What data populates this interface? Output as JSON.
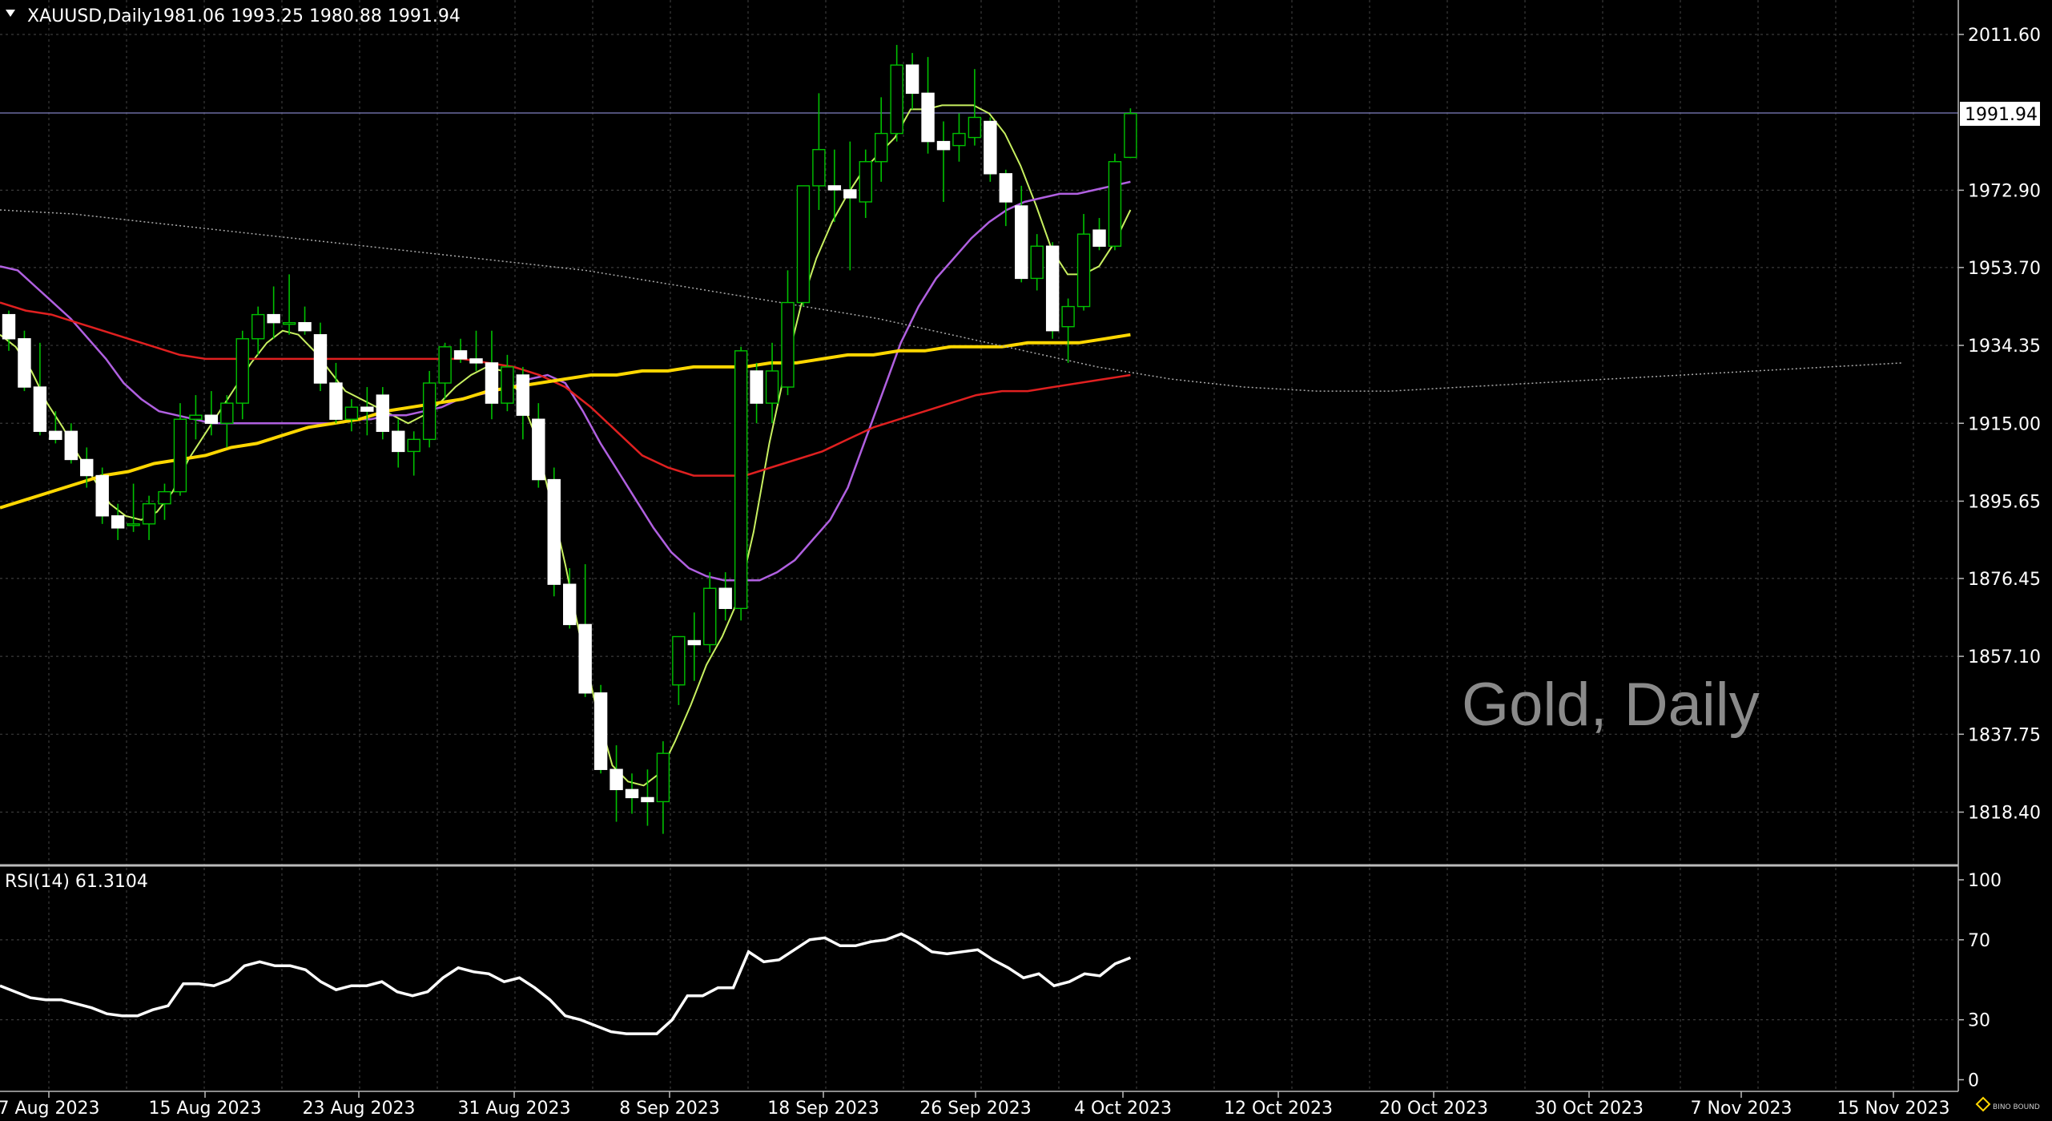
{
  "header": {
    "symbol": "XAUUSD,Daily",
    "ohlc": "1981.06 1993.25 1980.88 1991.94"
  },
  "watermark": "Gold, Daily",
  "current_price_label": "1991.94",
  "rsi_label": "RSI(14) 61.3104",
  "colors": {
    "background": "#000000",
    "grid": "#3a3a3a",
    "up_candle": "#000000",
    "down_candle": "#ffffff",
    "wick": "#00c000",
    "ma_fast": "#c8f060",
    "ma_mid": "#b060e0",
    "ma_red": "#e02020",
    "ma_gold": "#ffd700",
    "ma_dotted": "#aaaaaa",
    "rsi_line": "#ffffff",
    "bid_line": "#6a6aa0"
  },
  "chart_data": {
    "type": "candlestick",
    "symbol": "XAUUSD",
    "timeframe": "Daily",
    "price_axis_ticks": [
      2011.6,
      1991.94,
      1972.9,
      1953.7,
      1934.35,
      1915.0,
      1895.65,
      1876.45,
      1857.1,
      1837.75,
      1818.4
    ],
    "price_axis_labels": [
      "2011.60",
      "1972.90",
      "1953.70",
      "1934.35",
      "1915.00",
      "1895.65",
      "1876.45",
      "1857.10",
      "1837.75",
      "1818.40"
    ],
    "ylim": [
      1810.0,
      2018.0
    ],
    "date_labels": [
      "7 Aug 2023",
      "15 Aug 2023",
      "23 Aug 2023",
      "31 Aug 2023",
      "8 Sep 2023",
      "18 Sep 2023",
      "26 Sep 2023",
      "4 Oct 2023",
      "12 Oct 2023",
      "20 Oct 2023",
      "30 Oct 2023",
      "7 Nov 2023",
      "15 Nov 2023"
    ],
    "candles": [
      {
        "o": 1942,
        "h": 1943,
        "l": 1933,
        "c": 1936
      },
      {
        "o": 1936,
        "h": 1938,
        "l": 1923,
        "c": 1924
      },
      {
        "o": 1924,
        "h": 1935,
        "l": 1912,
        "c": 1913
      },
      {
        "o": 1913,
        "h": 1918,
        "l": 1910,
        "c": 1911
      },
      {
        "o": 1913,
        "h": 1915,
        "l": 1905,
        "c": 1906
      },
      {
        "o": 1906,
        "h": 1909,
        "l": 1899,
        "c": 1902
      },
      {
        "o": 1902,
        "h": 1904,
        "l": 1890,
        "c": 1892
      },
      {
        "o": 1892,
        "h": 1895,
        "l": 1886,
        "c": 1889
      },
      {
        "o": 1890,
        "h": 1900,
        "l": 1888,
        "c": 1890
      },
      {
        "o": 1890,
        "h": 1897,
        "l": 1886,
        "c": 1895
      },
      {
        "o": 1895,
        "h": 1900,
        "l": 1891,
        "c": 1898
      },
      {
        "o": 1898,
        "h": 1920,
        "l": 1897,
        "c": 1916
      },
      {
        "o": 1916,
        "h": 1922,
        "l": 1911,
        "c": 1917
      },
      {
        "o": 1917,
        "h": 1923,
        "l": 1912,
        "c": 1915
      },
      {
        "o": 1915,
        "h": 1922,
        "l": 1909,
        "c": 1920
      },
      {
        "o": 1920,
        "h": 1938,
        "l": 1916,
        "c": 1936
      },
      {
        "o": 1936,
        "h": 1944,
        "l": 1932,
        "c": 1942
      },
      {
        "o": 1942,
        "h": 1949,
        "l": 1936,
        "c": 1940
      },
      {
        "o": 1940,
        "h": 1952,
        "l": 1937,
        "c": 1940
      },
      {
        "o": 1940,
        "h": 1944,
        "l": 1937,
        "c": 1938
      },
      {
        "o": 1937,
        "h": 1940,
        "l": 1923,
        "c": 1925
      },
      {
        "o": 1925,
        "h": 1930,
        "l": 1915,
        "c": 1916
      },
      {
        "o": 1916,
        "h": 1921,
        "l": 1913,
        "c": 1919
      },
      {
        "o": 1919,
        "h": 1924,
        "l": 1912,
        "c": 1918
      },
      {
        "o": 1922,
        "h": 1924,
        "l": 1911,
        "c": 1913
      },
      {
        "o": 1913,
        "h": 1916,
        "l": 1904,
        "c": 1908
      },
      {
        "o": 1908,
        "h": 1913,
        "l": 1902,
        "c": 1911
      },
      {
        "o": 1911,
        "h": 1928,
        "l": 1909,
        "c": 1925
      },
      {
        "o": 1925,
        "h": 1935,
        "l": 1921,
        "c": 1934
      },
      {
        "o": 1933,
        "h": 1936,
        "l": 1930,
        "c": 1931
      },
      {
        "o": 1931,
        "h": 1938,
        "l": 1928,
        "c": 1930
      },
      {
        "o": 1930,
        "h": 1938,
        "l": 1916,
        "c": 1920
      },
      {
        "o": 1920,
        "h": 1932,
        "l": 1918,
        "c": 1929
      },
      {
        "o": 1927,
        "h": 1929,
        "l": 1911,
        "c": 1917
      },
      {
        "o": 1916,
        "h": 1920,
        "l": 1899,
        "c": 1901
      },
      {
        "o": 1901,
        "h": 1904,
        "l": 1872,
        "c": 1875
      },
      {
        "o": 1875,
        "h": 1879,
        "l": 1864,
        "c": 1865
      },
      {
        "o": 1865,
        "h": 1880,
        "l": 1847,
        "c": 1848
      },
      {
        "o": 1848,
        "h": 1850,
        "l": 1828,
        "c": 1829
      },
      {
        "o": 1829,
        "h": 1835,
        "l": 1816,
        "c": 1824
      },
      {
        "o": 1824,
        "h": 1828,
        "l": 1818,
        "c": 1822
      },
      {
        "o": 1822,
        "h": 1829,
        "l": 1815,
        "c": 1821
      },
      {
        "o": 1821,
        "h": 1836,
        "l": 1813,
        "c": 1833
      },
      {
        "o": 1850,
        "h": 1862,
        "l": 1845,
        "c": 1862
      },
      {
        "o": 1861,
        "h": 1868,
        "l": 1851,
        "c": 1860
      },
      {
        "o": 1860,
        "h": 1878,
        "l": 1858,
        "c": 1874
      },
      {
        "o": 1874,
        "h": 1878,
        "l": 1866,
        "c": 1869
      },
      {
        "o": 1869,
        "h": 1934,
        "l": 1866,
        "c": 1933
      },
      {
        "o": 1928,
        "h": 1930,
        "l": 1915,
        "c": 1920
      },
      {
        "o": 1920,
        "h": 1935,
        "l": 1915,
        "c": 1928
      },
      {
        "o": 1924,
        "h": 1953,
        "l": 1922,
        "c": 1945
      },
      {
        "o": 1945,
        "h": 1974,
        "l": 1944,
        "c": 1974
      },
      {
        "o": 1974,
        "h": 1997,
        "l": 1968,
        "c": 1983
      },
      {
        "o": 1974,
        "h": 1983,
        "l": 1965,
        "c": 1973
      },
      {
        "o": 1973,
        "h": 1985,
        "l": 1953,
        "c": 1971
      },
      {
        "o": 1970,
        "h": 1983,
        "l": 1966,
        "c": 1980
      },
      {
        "o": 1980,
        "h": 1996,
        "l": 1975,
        "c": 1987
      },
      {
        "o": 1987,
        "h": 2009,
        "l": 1985,
        "c": 2004
      },
      {
        "o": 2004,
        "h": 2007,
        "l": 1993,
        "c": 1997
      },
      {
        "o": 1997,
        "h": 2006,
        "l": 1982,
        "c": 1985
      },
      {
        "o": 1985,
        "h": 1990,
        "l": 1970,
        "c": 1983
      },
      {
        "o": 1984,
        "h": 1992,
        "l": 1980,
        "c": 1987
      },
      {
        "o": 1986,
        "h": 2003,
        "l": 1984,
        "c": 1991
      },
      {
        "o": 1990,
        "h": 1991,
        "l": 1975,
        "c": 1977
      },
      {
        "o": 1977,
        "h": 1978,
        "l": 1964,
        "c": 1970
      },
      {
        "o": 1969,
        "h": 1974,
        "l": 1950,
        "c": 1951
      },
      {
        "o": 1951,
        "h": 1962,
        "l": 1948,
        "c": 1959
      },
      {
        "o": 1959,
        "h": 1960,
        "l": 1936,
        "c": 1938
      },
      {
        "o": 1939,
        "h": 1946,
        "l": 1930,
        "c": 1944
      },
      {
        "o": 1944,
        "h": 1967,
        "l": 1943,
        "c": 1962
      },
      {
        "o": 1963,
        "h": 1966,
        "l": 1958,
        "c": 1959
      },
      {
        "o": 1959,
        "h": 1982,
        "l": 1958,
        "c": 1980
      },
      {
        "o": 1981.06,
        "h": 1993.25,
        "l": 1980.88,
        "c": 1991.94
      }
    ],
    "series": [
      {
        "name": "ma_fast",
        "values": [
          1937,
          1934,
          1928,
          1920,
          1914,
          1907,
          1901,
          1895,
          1892,
          1891,
          1893,
          1898,
          1906,
          1912,
          1918,
          1924,
          1930,
          1935,
          1938,
          1937,
          1933,
          1928,
          1923,
          1921,
          1919,
          1917,
          1915,
          1917,
          1920,
          1924,
          1927,
          1929,
          1928,
          1923,
          1913,
          1897,
          1880,
          1861,
          1844,
          1830,
          1826,
          1825,
          1828,
          1836,
          1845,
          1855,
          1862,
          1871,
          1888,
          1910,
          1928,
          1944,
          1956,
          1965,
          1972,
          1978,
          1982,
          1986,
          1993,
          1993,
          1994,
          1994,
          1994,
          1992,
          1987,
          1979,
          1969,
          1958,
          1952,
          1952,
          1954,
          1960,
          1968
        ]
      },
      {
        "name": "ma_mid",
        "values": [
          1954,
          1953,
          1949,
          1945,
          1941,
          1936,
          1931,
          1925,
          1921,
          1918,
          1917,
          1916,
          1915,
          1915,
          1915,
          1915,
          1915,
          1915,
          1915,
          1915,
          1916,
          1916,
          1917,
          1917,
          1918,
          1919,
          1921,
          1922,
          1923,
          1924,
          1926,
          1927,
          1925,
          1918,
          1910,
          1903,
          1896,
          1889,
          1883,
          1879,
          1877,
          1876,
          1876,
          1876,
          1878,
          1881,
          1886,
          1891,
          1899,
          1911,
          1923,
          1935,
          1944,
          1951,
          1956,
          1961,
          1965,
          1968,
          1970,
          1971,
          1972,
          1972,
          1973,
          1974,
          1975
        ]
      },
      {
        "name": "ma_red",
        "values": [
          1945,
          1943,
          1942,
          1940,
          1938,
          1936,
          1934,
          1932,
          1931,
          1931,
          1931,
          1931,
          1931,
          1931,
          1931,
          1931,
          1931,
          1931,
          1931,
          1930,
          1929,
          1927,
          1924,
          1919,
          1913,
          1907,
          1904,
          1902,
          1902,
          1902,
          1904,
          1906,
          1908,
          1911,
          1914,
          1916,
          1918,
          1920,
          1922,
          1923,
          1923,
          1924,
          1925,
          1926,
          1927
        ]
      },
      {
        "name": "ma_gold",
        "values": [
          1894,
          1896,
          1898,
          1900,
          1902,
          1903,
          1905,
          1906,
          1907,
          1909,
          1910,
          1912,
          1914,
          1915,
          1916,
          1918,
          1919,
          1920,
          1921,
          1923,
          1924,
          1925,
          1926,
          1927,
          1927,
          1928,
          1928,
          1929,
          1929,
          1929,
          1930,
          1930,
          1931,
          1932,
          1932,
          1933,
          1933,
          1934,
          1934,
          1934,
          1935,
          1935,
          1935,
          1936,
          1937
        ]
      },
      {
        "name": "ma_dotted",
        "values": [
          1968,
          1967,
          1965,
          1963,
          1961,
          1959,
          1957,
          1955,
          1953,
          1950,
          1947,
          1944,
          1941,
          1937,
          1933,
          1929,
          1926,
          1924,
          1923,
          1923,
          1924,
          1925,
          1926,
          1927,
          1928,
          1929,
          1930
        ]
      }
    ],
    "rsi": {
      "label": "RSI(14)",
      "value": 61.3104,
      "ylim": [
        0,
        100
      ],
      "levels": [
        100,
        70,
        30,
        0
      ],
      "values": [
        47,
        44,
        41,
        40,
        40,
        38,
        36,
        33,
        32,
        32,
        35,
        37,
        48,
        48,
        47,
        50,
        57,
        59,
        57,
        57,
        55,
        49,
        45,
        47,
        47,
        49,
        44,
        42,
        44,
        51,
        56,
        54,
        53,
        49,
        51,
        46,
        40,
        32,
        30,
        27,
        24,
        23,
        23,
        23,
        30,
        42,
        42,
        46,
        46,
        64,
        59,
        60,
        65,
        70,
        71,
        67,
        67,
        69,
        70,
        73,
        69,
        64,
        63,
        64,
        65,
        60,
        56,
        51,
        53,
        47,
        49,
        53,
        52,
        58,
        61
      ]
    }
  }
}
